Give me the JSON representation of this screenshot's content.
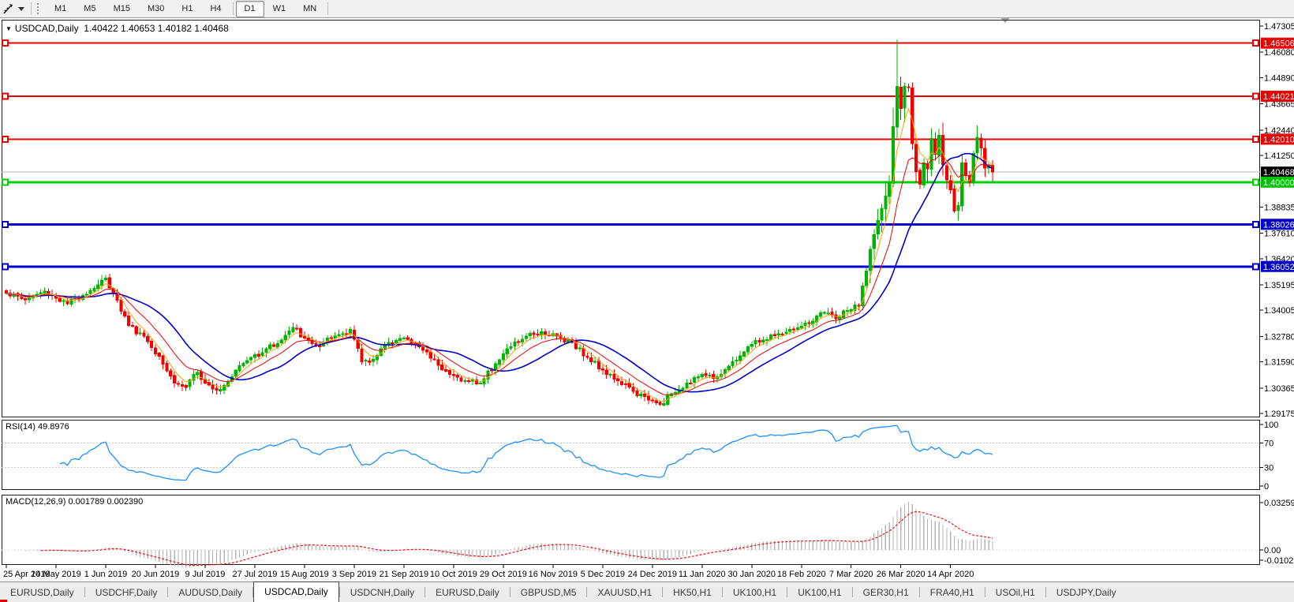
{
  "toolbar": {
    "cursor_tool": "crosshair-pointer-tool",
    "timeframes": [
      "M1",
      "M5",
      "M15",
      "M30",
      "H1",
      "H4",
      "D1",
      "W1",
      "MN"
    ],
    "active_timeframe": "D1"
  },
  "chart_header": {
    "symbol": "USDCAD,Daily",
    "ohlc": "1.40422 1.40653 1.40182 1.40468"
  },
  "rsi_panel": {
    "label": "RSI(14) 49.8976",
    "axis_labels": [
      "100",
      "70",
      "30",
      "0"
    ],
    "axis_values": [
      100,
      70,
      30,
      0
    ],
    "dashed_levels": [
      70,
      30
    ],
    "line_color": "#1f8fff"
  },
  "macd_panel": {
    "label": "MACD(12,26,9) 0.001789 0.002390",
    "axis_labels": [
      "0.032595",
      "0.00",
      "-0.010227"
    ],
    "axis_max": 0.032595,
    "axis_min": -0.010227,
    "histogram_color": "#b4b4b4",
    "signal_color": "#ef1010"
  },
  "price_axis": {
    "ticks": [
      1.47305,
      1.4608,
      1.4489,
      1.43665,
      1.4244,
      1.4125,
      1.38835,
      1.3761,
      1.3642,
      1.35195,
      1.34005,
      1.3278,
      1.3159,
      1.30365,
      1.29175
    ],
    "badges": [
      {
        "label": "1.46506",
        "value": 1.46506,
        "bg": "#e60000",
        "fg": "#ffffff",
        "kind": "resistance-line-label"
      },
      {
        "label": "1.44021",
        "value": 1.44021,
        "bg": "#e60000",
        "fg": "#ffffff",
        "kind": "resistance-line-label"
      },
      {
        "label": "1.42010",
        "value": 1.4201,
        "bg": "#e60000",
        "fg": "#ffffff",
        "kind": "resistance-line-label"
      },
      {
        "label": "1.40468",
        "value": 1.40468,
        "bg": "#000000",
        "fg": "#ffffff",
        "kind": "current-price-label"
      },
      {
        "label": "1.40000",
        "value": 1.4,
        "bg": "#00c400",
        "fg": "#ffffff",
        "kind": "support-line-label"
      },
      {
        "label": "1.38026",
        "value": 1.38026,
        "bg": "#0000cd",
        "fg": "#ffffff",
        "kind": "support-line-label"
      },
      {
        "label": "1.36052",
        "value": 1.36052,
        "bg": "#0000cd",
        "fg": "#ffffff",
        "kind": "support-line-label"
      }
    ]
  },
  "time_axis": {
    "labels": [
      "25 Apr 2019",
      "14 May 2019",
      "1 Jun 2019",
      "20 Jun 2019",
      "9 Jul 2019",
      "27 Jul 2019",
      "15 Aug 2019",
      "3 Sep 2019",
      "21 Sep 2019",
      "10 Oct 2019",
      "29 Oct 2019",
      "16 Nov 2019",
      "5 Dec 2019",
      "24 Dec 2019",
      "11 Jan 2020",
      "30 Jan 2020",
      "18 Feb 2020",
      "7 Mar 2020",
      "26 Mar 2020",
      "14 Apr 2020"
    ]
  },
  "tabs": {
    "items": [
      "EURUSD,Daily",
      "USDCHF,Daily",
      "AUDUSD,Daily",
      "USDCAD,Daily",
      "USDCNH,Daily",
      "EURUSD,Daily",
      "GBPUSD,M5",
      "XAUUSD,H1",
      "HK50,H1",
      "UK100,H1",
      "UK100,H1",
      "GER30,H1",
      "FRA40,H1",
      "USOil,H1",
      "USDJPY,Daily"
    ],
    "active_index": 3
  },
  "chart_data": {
    "type": "candlestick",
    "symbol": "USDCAD",
    "timeframe": "Daily",
    "title": "USDCAD,Daily 1.40422 1.40653 1.40182 1.40468",
    "current_price": 1.40468,
    "bars": 259,
    "ylim": [
      1.29175,
      1.47305
    ],
    "y_ticks": [
      1.47305,
      1.4608,
      1.4489,
      1.43665,
      1.4244,
      1.4125,
      1.38835,
      1.3761,
      1.3642,
      1.35195,
      1.34005,
      1.3278,
      1.3159,
      1.30365,
      1.29175
    ],
    "x_tick_labels": [
      "25 Apr 2019",
      "14 May 2019",
      "1 Jun 2019",
      "20 Jun 2019",
      "9 Jul 2019",
      "27 Jul 2019",
      "15 Aug 2019",
      "3 Sep 2019",
      "21 Sep 2019",
      "10 Oct 2019",
      "29 Oct 2019",
      "16 Nov 2019",
      "5 Dec 2019",
      "24 Dec 2019",
      "11 Jan 2020",
      "30 Jan 2020",
      "18 Feb 2020",
      "7 Mar 2020",
      "26 Mar 2020",
      "14 Apr 2020"
    ],
    "x_tick_every_bars": 13,
    "grid": false,
    "up_color": "#00b500",
    "down_color": "#f20000",
    "hlines": [
      {
        "value": 1.46506,
        "color": "#e60000",
        "width": 2
      },
      {
        "value": 1.44021,
        "color": "#e60000",
        "width": 2
      },
      {
        "value": 1.4201,
        "color": "#e60000",
        "width": 2
      },
      {
        "value": 1.4,
        "color": "#00d000",
        "width": 3
      },
      {
        "value": 1.38026,
        "color": "#0000d2",
        "width": 3
      },
      {
        "value": 1.36052,
        "color": "#0000d2",
        "width": 3
      }
    ],
    "current_price_line": {
      "value": 1.40468,
      "color": "#b8b8b8",
      "width": 1
    },
    "moving_averages": [
      {
        "name": "fast",
        "method": "ema",
        "period": 5,
        "color": "#ffa200",
        "width": 1
      },
      {
        "name": "medium",
        "method": "ema",
        "period": 12,
        "color": "#f20000",
        "width": 1
      },
      {
        "name": "slow",
        "method": "sma",
        "period": 21,
        "color": "#0000c8",
        "width": 1.6
      }
    ],
    "close_anchors": [
      [
        0,
        1.348
      ],
      [
        5,
        1.345
      ],
      [
        10,
        1.349
      ],
      [
        16,
        1.343
      ],
      [
        20,
        1.347
      ],
      [
        24,
        1.352
      ],
      [
        26,
        1.355
      ],
      [
        28,
        1.348
      ],
      [
        32,
        1.333
      ],
      [
        36,
        1.328
      ],
      [
        40,
        1.3185
      ],
      [
        44,
        1.306
      ],
      [
        47,
        1.304
      ],
      [
        50,
        1.311
      ],
      [
        53,
        1.305
      ],
      [
        56,
        1.303
      ],
      [
        60,
        1.312
      ],
      [
        64,
        1.318
      ],
      [
        68,
        1.322
      ],
      [
        72,
        1.326
      ],
      [
        75,
        1.332
      ],
      [
        78,
        1.327
      ],
      [
        82,
        1.323
      ],
      [
        86,
        1.328
      ],
      [
        90,
        1.331
      ],
      [
        93,
        1.316
      ],
      [
        96,
        1.317
      ],
      [
        100,
        1.325
      ],
      [
        104,
        1.327
      ],
      [
        108,
        1.323
      ],
      [
        112,
        1.317
      ],
      [
        116,
        1.31
      ],
      [
        120,
        1.307
      ],
      [
        124,
        1.306
      ],
      [
        128,
        1.315
      ],
      [
        132,
        1.323
      ],
      [
        136,
        1.328
      ],
      [
        140,
        1.33
      ],
      [
        144,
        1.328
      ],
      [
        148,
        1.325
      ],
      [
        152,
        1.318
      ],
      [
        156,
        1.312
      ],
      [
        160,
        1.307
      ],
      [
        164,
        1.302
      ],
      [
        168,
        1.298
      ],
      [
        171,
        1.296
      ],
      [
        174,
        1.301
      ],
      [
        178,
        1.306
      ],
      [
        182,
        1.31
      ],
      [
        186,
        1.309
      ],
      [
        190,
        1.316
      ],
      [
        194,
        1.323
      ],
      [
        198,
        1.326
      ],
      [
        202,
        1.329
      ],
      [
        206,
        1.331
      ],
      [
        210,
        1.334
      ],
      [
        214,
        1.339
      ],
      [
        217,
        1.336
      ],
      [
        220,
        1.34
      ],
      [
        223,
        1.342
      ],
      [
        226,
        1.3685
      ],
      [
        228,
        1.382
      ],
      [
        230,
        1.3935
      ],
      [
        231,
        1.3998
      ],
      [
        232,
        1.426
      ],
      [
        233,
        1.4448
      ],
      [
        234,
        1.4345
      ],
      [
        235,
        1.4448
      ],
      [
        236,
        1.4445
      ],
      [
        237,
        1.418
      ],
      [
        238,
        1.405
      ],
      [
        239,
        1.399
      ],
      [
        240,
        1.409
      ],
      [
        241,
        1.4062
      ],
      [
        242,
        1.4205
      ],
      [
        243,
        1.413
      ],
      [
        244,
        1.422
      ],
      [
        245,
        1.408
      ],
      [
        246,
        1.401
      ],
      [
        247,
        1.3965
      ],
      [
        248,
        1.3865
      ],
      [
        249,
        1.389
      ],
      [
        250,
        1.409
      ],
      [
        251,
        1.403
      ],
      [
        252,
        1.4
      ],
      [
        253,
        1.4135
      ],
      [
        254,
        1.421
      ],
      [
        255,
        1.416
      ],
      [
        256,
        1.4065
      ],
      [
        257,
        1.408
      ],
      [
        258,
        1.40468
      ]
    ],
    "volatility_segments": [
      [
        0,
        225,
        0.004
      ],
      [
        226,
        245,
        0.011
      ],
      [
        246,
        258,
        0.0075
      ]
    ],
    "wick_overrides": {
      "26": {
        "h": 1.3565
      },
      "171": {
        "l": 1.2952
      },
      "232": {
        "h": 1.4349
      },
      "233": {
        "h": 1.4668
      },
      "248": {
        "l": 1.3855
      },
      "254": {
        "h": 1.4265
      }
    },
    "indicators": [
      {
        "name": "RSI",
        "params": [
          14
        ],
        "value": 49.8976,
        "range": [
          0,
          100
        ],
        "levels": [
          70,
          30
        ]
      },
      {
        "name": "MACD",
        "params": [
          12,
          26,
          9
        ],
        "values": [
          0.001789,
          0.00239
        ],
        "axis_max": 0.032595,
        "axis_min": -0.010227
      }
    ]
  }
}
